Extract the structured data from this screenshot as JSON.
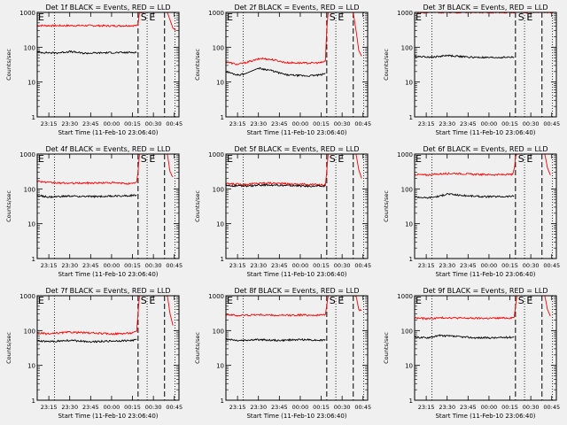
{
  "chart_data": [
    {
      "type": "line",
      "title": "Det 1f BLACK = Events, RED = LLD",
      "xlabel": "Start Time (11-Feb-10 23:06:40)",
      "ylabel": "Counts/sec",
      "yscale": "log",
      "ylim": [
        1,
        1000
      ],
      "yticks": [
        "1",
        "10",
        "100",
        "1000"
      ],
      "xlim": [
        "23:06:40",
        "00:48:20"
      ],
      "xticks": [
        "23:15",
        "23:30",
        "23:45",
        "00:00",
        "00:15",
        "00:30",
        "00:45"
      ],
      "markers": {
        "E": "23:06:40",
        "S": "00:25:00",
        "E2": "00:26:40"
      },
      "dashed_lines": [
        "00:19:00",
        "00:38:00"
      ],
      "dotted_lines": [
        "23:19:00",
        "00:25:30",
        "00:45:30"
      ],
      "series": [
        {
          "color": "#ff0000",
          "x": [
            "23:06:40",
            "23:20:00",
            "23:40:00",
            "00:00:00",
            "00:18:00",
            "00:19:00",
            "00:20:00",
            "00:25:00",
            "00:33:00",
            "00:36:00",
            "00:38:00",
            "00:40:00",
            "00:42:00",
            "00:44:00",
            "00:46:00"
          ],
          "values": [
            420,
            415,
            420,
            410,
            420,
            430,
            1000,
            1050,
            1050,
            1050,
            1050,
            1000,
            600,
            350,
            300
          ]
        },
        {
          "color": "#000000",
          "x": [
            "23:06:40",
            "23:20:00",
            "23:30:00",
            "23:40:00",
            "00:00:00",
            "00:10:00",
            "00:18:00"
          ],
          "values": [
            72,
            68,
            75,
            67,
            70,
            70,
            72
          ]
        }
      ]
    },
    {
      "type": "line",
      "title": "Det 2f BLACK = Events, RED = LLD",
      "xlabel": "Start Time (11-Feb-10 23:06:40)",
      "ylabel": "Counts/sec",
      "yscale": "log",
      "ylim": [
        1,
        1000
      ],
      "yticks": [
        "1",
        "10",
        "100",
        "1000"
      ],
      "xlim": [
        "23:06:40",
        "00:48:20"
      ],
      "xticks": [
        "23:15",
        "23:30",
        "23:45",
        "00:00",
        "00:15",
        "00:30",
        "00:45"
      ],
      "markers": {
        "E": "23:06:40",
        "S": "00:25:00",
        "E2": "00:26:40"
      },
      "dashed_lines": [
        "00:19:00",
        "00:38:00"
      ],
      "dotted_lines": [
        "23:19:00",
        "00:25:30",
        "00:45:30"
      ],
      "series": [
        {
          "color": "#ff0000",
          "x": [
            "23:06:40",
            "23:15:00",
            "23:25:00",
            "23:32:00",
            "23:40:00",
            "23:50:00",
            "00:05:00",
            "00:15:00",
            "00:18:00",
            "00:19:00",
            "00:20:00",
            "00:35:00",
            "00:38:00",
            "00:40:00",
            "00:42:00",
            "00:44:00"
          ],
          "values": [
            38,
            32,
            40,
            48,
            44,
            36,
            35,
            36,
            40,
            300,
            1050,
            1050,
            1000,
            300,
            80,
            55
          ]
        },
        {
          "color": "#000000",
          "x": [
            "23:06:40",
            "23:15:00",
            "23:20:00",
            "23:30:00",
            "23:38:00",
            "23:50:00",
            "00:05:00",
            "00:15:00",
            "00:18:00"
          ],
          "values": [
            20,
            16,
            17,
            25,
            22,
            16,
            15,
            16,
            18
          ]
        }
      ]
    },
    {
      "type": "line",
      "title": "Det 3f BLACK = Events, RED = LLD",
      "xlabel": "Start Time (11-Feb-10 23:06:40)",
      "ylabel": "Counts/sec",
      "yscale": "log",
      "ylim": [
        1,
        1000
      ],
      "yticks": [
        "1",
        "10",
        "100",
        "1000"
      ],
      "xlim": [
        "23:06:40",
        "00:48:20"
      ],
      "xticks": [
        "23:15",
        "23:30",
        "23:45",
        "00:00",
        "00:15",
        "00:30",
        "00:45"
      ],
      "markers": {
        "E": "23:06:40",
        "S": "00:25:00",
        "E2": "00:26:40"
      },
      "dashed_lines": [
        "00:19:00",
        "00:38:00"
      ],
      "dotted_lines": [
        "23:19:00",
        "00:25:30",
        "00:45:30"
      ],
      "series": [
        {
          "color": "#ff0000",
          "x": [
            "23:06:40",
            "00:00:00",
            "00:38:00",
            "00:40:00",
            "00:42:00",
            "00:46:00"
          ],
          "values": [
            1000,
            1000,
            1000,
            1000,
            1000,
            1000
          ]
        },
        {
          "color": "#000000",
          "x": [
            "23:06:40",
            "23:20:00",
            "23:30:00",
            "23:45:00",
            "00:00:00",
            "00:18:00"
          ],
          "values": [
            55,
            52,
            58,
            52,
            50,
            52
          ]
        }
      ]
    },
    {
      "type": "line",
      "title": "Det 4f BLACK = Events, RED = LLD",
      "xlabel": "Start Time (11-Feb-10 23:06:40)",
      "ylabel": "Counts/sec",
      "yscale": "log",
      "ylim": [
        1,
        1000
      ],
      "yticks": [
        "1",
        "10",
        "100",
        "1000"
      ],
      "xlim": [
        "23:06:40",
        "00:48:20"
      ],
      "xticks": [
        "23:15",
        "23:30",
        "23:45",
        "00:00",
        "00:15",
        "00:30",
        "00:45"
      ],
      "markers": {
        "E": "23:06:40",
        "S": "00:25:00",
        "E2": "00:26:40"
      },
      "dashed_lines": [
        "00:19:00",
        "00:38:00"
      ],
      "dotted_lines": [
        "23:19:00",
        "00:25:30",
        "00:45:30"
      ],
      "series": [
        {
          "color": "#ff0000",
          "x": [
            "23:06:40",
            "23:15:00",
            "23:30:00",
            "23:45:00",
            "00:00:00",
            "00:15:00",
            "00:18:00",
            "00:19:00",
            "00:20:00",
            "00:38:00",
            "00:40:00",
            "00:42:00",
            "00:44:00"
          ],
          "values": [
            170,
            150,
            145,
            148,
            150,
            140,
            160,
            300,
            1050,
            1050,
            1000,
            300,
            220
          ]
        },
        {
          "color": "#000000",
          "x": [
            "23:06:40",
            "23:15:00",
            "23:30:00",
            "23:45:00",
            "00:00:00",
            "00:18:00"
          ],
          "values": [
            65,
            58,
            62,
            60,
            62,
            65
          ]
        }
      ]
    },
    {
      "type": "line",
      "title": "Det 5f BLACK = Events, RED = LLD",
      "xlabel": "Start Time (11-Feb-10 23:06:40)",
      "ylabel": "Counts/sec",
      "yscale": "log",
      "ylim": [
        1,
        1000
      ],
      "yticks": [
        "1",
        "10",
        "100",
        "1000"
      ],
      "xlim": [
        "23:06:40",
        "00:48:20"
      ],
      "xticks": [
        "23:15",
        "23:30",
        "23:45",
        "00:00",
        "00:15",
        "00:30",
        "00:45"
      ],
      "markers": {
        "E": "23:06:40",
        "S": "00:25:00",
        "E2": "00:26:40"
      },
      "dashed_lines": [
        "00:19:00",
        "00:38:00"
      ],
      "dotted_lines": [
        "23:19:00",
        "00:25:30",
        "00:45:30"
      ],
      "series": [
        {
          "color": "#ff0000",
          "x": [
            "23:06:40",
            "23:20:00",
            "23:35:00",
            "23:50:00",
            "00:05:00",
            "00:18:00",
            "00:19:00",
            "00:20:00",
            "00:38:00",
            "00:40:00",
            "00:42:00",
            "00:44:00"
          ],
          "values": [
            140,
            135,
            150,
            140,
            135,
            130,
            300,
            1050,
            1050,
            1000,
            350,
            200
          ]
        },
        {
          "color": "#000000",
          "x": [
            "23:06:40",
            "23:20:00",
            "23:35:00",
            "23:50:00",
            "00:05:00",
            "00:18:00"
          ],
          "values": [
            125,
            120,
            130,
            125,
            120,
            120
          ]
        }
      ]
    },
    {
      "type": "line",
      "title": "Det 6f BLACK = Events, RED = LLD",
      "xlabel": "Start Time (11-Feb-10 23:06:40)",
      "ylabel": "Counts/sec",
      "yscale": "log",
      "ylim": [
        1,
        1000
      ],
      "yticks": [
        "1",
        "10",
        "100",
        "1000"
      ],
      "xlim": [
        "23:06:40",
        "00:48:20"
      ],
      "xticks": [
        "23:15",
        "23:30",
        "23:45",
        "00:00",
        "00:15",
        "00:30",
        "00:45"
      ],
      "markers": {
        "E": "23:06:40",
        "S": "00:25:00",
        "E2": "00:26:40"
      },
      "dashed_lines": [
        "00:19:00",
        "00:38:00"
      ],
      "dotted_lines": [
        "23:19:00",
        "00:25:30",
        "00:45:30"
      ],
      "series": [
        {
          "color": "#ff0000",
          "x": [
            "23:06:40",
            "23:15:00",
            "23:25:00",
            "23:35:00",
            "23:50:00",
            "00:05:00",
            "00:17:00",
            "00:18:30",
            "00:19:00",
            "00:20:00",
            "00:38:00",
            "00:40:00",
            "00:42:00",
            "00:44:00"
          ],
          "values": [
            260,
            250,
            270,
            280,
            260,
            255,
            260,
            450,
            800,
            1050,
            1050,
            1000,
            400,
            250
          ]
        },
        {
          "color": "#000000",
          "x": [
            "23:06:40",
            "23:15:00",
            "23:25:00",
            "23:30:00",
            "23:40:00",
            "23:55:00",
            "00:10:00",
            "00:18:00"
          ],
          "values": [
            60,
            55,
            62,
            72,
            65,
            60,
            60,
            62
          ]
        }
      ]
    },
    {
      "type": "line",
      "title": "Det 7f BLACK = Events, RED = LLD",
      "xlabel": "Start Time (11-Feb-10 23:06:40)",
      "ylabel": "Counts/sec",
      "yscale": "log",
      "ylim": [
        1,
        1000
      ],
      "yticks": [
        "1",
        "10",
        "100",
        "1000"
      ],
      "xlim": [
        "23:06:40",
        "00:48:20"
      ],
      "xticks": [
        "23:15",
        "23:30",
        "23:45",
        "00:00",
        "00:15",
        "00:30",
        "00:45"
      ],
      "markers": {
        "E": "23:06:40",
        "S": "00:25:00",
        "E2": "00:26:40"
      },
      "dashed_lines": [
        "00:19:00",
        "00:38:00"
      ],
      "dotted_lines": [
        "23:19:00",
        "00:25:30",
        "00:45:30"
      ],
      "series": [
        {
          "color": "#ff0000",
          "x": [
            "23:06:40",
            "23:15:00",
            "23:30:00",
            "23:45:00",
            "00:00:00",
            "00:15:00",
            "00:18:00",
            "00:19:00",
            "00:20:00",
            "00:38:00",
            "00:40:00",
            "00:42:00",
            "00:44:00"
          ],
          "values": [
            85,
            80,
            90,
            85,
            80,
            85,
            95,
            300,
            1050,
            1050,
            1000,
            300,
            140
          ]
        },
        {
          "color": "#000000",
          "x": [
            "23:06:40",
            "23:15:00",
            "23:30:00",
            "23:45:00",
            "00:00:00",
            "00:15:00",
            "00:18:00"
          ],
          "values": [
            50,
            48,
            52,
            48,
            50,
            52,
            55
          ]
        }
      ]
    },
    {
      "type": "line",
      "title": "Det 8f BLACK = Events, RED = LLD",
      "xlabel": "Start Time (11-Feb-10 23:06:40)",
      "ylabel": "Counts/sec",
      "yscale": "log",
      "ylim": [
        1,
        1000
      ],
      "yticks": [
        "1",
        "10",
        "100",
        "1000"
      ],
      "xlim": [
        "23:06:40",
        "00:48:20"
      ],
      "xticks": [
        "23:15",
        "23:30",
        "23:45",
        "00:00",
        "00:15",
        "00:30",
        "00:45"
      ],
      "markers": {
        "E": "23:06:40",
        "S": "00:25:00",
        "E2": "00:26:40"
      },
      "dashed_lines": [
        "00:19:00",
        "00:38:00"
      ],
      "dotted_lines": [
        "23:19:00",
        "00:25:30",
        "00:45:30"
      ],
      "series": [
        {
          "color": "#ff0000",
          "x": [
            "23:06:40",
            "23:15:00",
            "23:30:00",
            "23:45:00",
            "00:00:00",
            "00:15:00",
            "00:18:00",
            "00:19:00",
            "00:20:00",
            "00:38:00",
            "00:40:00",
            "00:42:00",
            "00:44:00"
          ],
          "values": [
            290,
            270,
            285,
            270,
            280,
            275,
            290,
            500,
            1050,
            1050,
            1000,
            400,
            380
          ]
        },
        {
          "color": "#000000",
          "x": [
            "23:06:40",
            "23:15:00",
            "23:30:00",
            "23:45:00",
            "00:00:00",
            "00:15:00",
            "00:18:00"
          ],
          "values": [
            58,
            52,
            55,
            52,
            55,
            53,
            55
          ]
        }
      ]
    },
    {
      "type": "line",
      "title": "Det 9f BLACK = Events, RED = LLD",
      "xlabel": "Start Time (11-Feb-10 23:06:40)",
      "ylabel": "Counts/sec",
      "yscale": "log",
      "ylim": [
        1,
        1000
      ],
      "yticks": [
        "1",
        "10",
        "100",
        "1000"
      ],
      "xlim": [
        "23:06:40",
        "00:48:20"
      ],
      "xticks": [
        "23:15",
        "23:30",
        "23:45",
        "00:00",
        "00:15",
        "00:30",
        "00:45"
      ],
      "markers": {
        "E": "23:06:40",
        "S": "00:25:00",
        "E2": "00:26:40"
      },
      "dashed_lines": [
        "00:19:00",
        "00:38:00"
      ],
      "dotted_lines": [
        "23:19:00",
        "00:25:30",
        "00:45:30"
      ],
      "series": [
        {
          "color": "#ff0000",
          "x": [
            "23:06:40",
            "23:15:00",
            "23:30:00",
            "23:45:00",
            "00:00:00",
            "00:15:00",
            "00:18:00",
            "00:19:00",
            "00:20:00",
            "00:38:00",
            "00:40:00",
            "00:42:00",
            "00:44:00"
          ],
          "values": [
            230,
            220,
            235,
            225,
            225,
            230,
            240,
            450,
            1050,
            1050,
            1000,
            400,
            260
          ]
        },
        {
          "color": "#000000",
          "x": [
            "23:06:40",
            "23:15:00",
            "23:25:00",
            "23:35:00",
            "23:50:00",
            "00:05:00",
            "00:18:00"
          ],
          "values": [
            65,
            62,
            72,
            68,
            62,
            62,
            65
          ]
        }
      ]
    }
  ]
}
